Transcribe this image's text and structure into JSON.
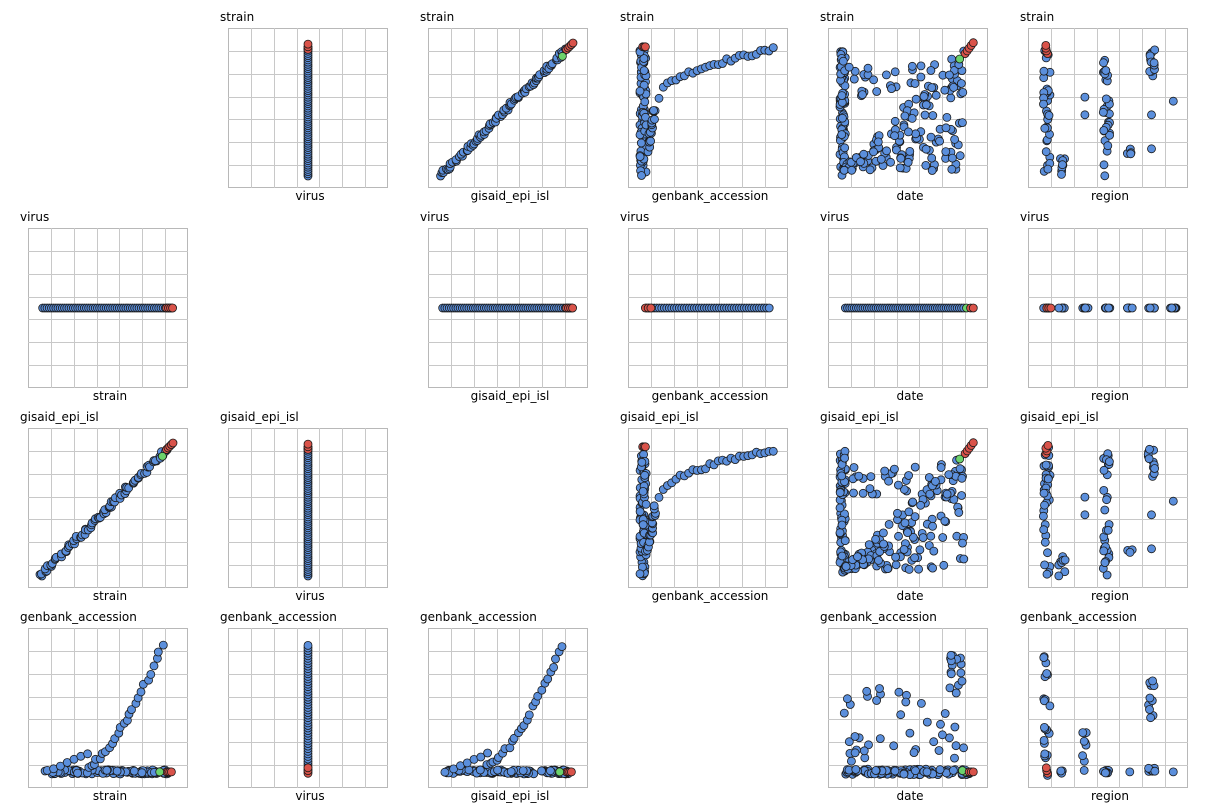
{
  "chart_data": {
    "type": "scatter",
    "title": "",
    "variables": [
      "strain",
      "virus",
      "gisaid_epi_isl",
      "genbank_accession",
      "date",
      "region"
    ],
    "row_variables": [
      "strain",
      "virus",
      "gisaid_epi_isl",
      "genbank_accession"
    ],
    "col_variables": [
      "strain",
      "virus",
      "gisaid_epi_isl",
      "genbank_accession",
      "date",
      "region"
    ],
    "colors": {
      "default": "#5b8fdc",
      "highlight": "#d9534a",
      "other": "#6cd36c"
    },
    "grid_divisions": 7,
    "legend": "none",
    "subplots": [
      {
        "row": "strain",
        "col": "virus",
        "ylabel": "strain",
        "xlabel": "virus",
        "pattern": "vline",
        "points": []
      },
      {
        "row": "strain",
        "col": "gisaid_epi_isl",
        "ylabel": "strain",
        "xlabel": "gisaid_epi_isl",
        "pattern": "diagonal",
        "points": []
      },
      {
        "row": "strain",
        "col": "genbank_accession",
        "ylabel": "strain",
        "xlabel": "genbank_accession",
        "pattern": "accession_curve",
        "points": []
      },
      {
        "row": "strain",
        "col": "date",
        "ylabel": "strain",
        "xlabel": "date",
        "pattern": "date_fan",
        "points": []
      },
      {
        "row": "strain",
        "col": "region",
        "ylabel": "strain",
        "xlabel": "region",
        "pattern": "region_clusters",
        "points": []
      },
      {
        "row": "virus",
        "col": "strain",
        "ylabel": "virus",
        "xlabel": "strain",
        "pattern": "hline",
        "points": []
      },
      {
        "row": "virus",
        "col": "gisaid_epi_isl",
        "ylabel": "virus",
        "xlabel": "gisaid_epi_isl",
        "pattern": "hline",
        "points": []
      },
      {
        "row": "virus",
        "col": "genbank_accession",
        "ylabel": "virus",
        "xlabel": "genbank_accession",
        "pattern": "hline_accession",
        "points": []
      },
      {
        "row": "virus",
        "col": "date",
        "ylabel": "virus",
        "xlabel": "date",
        "pattern": "hline_date",
        "points": []
      },
      {
        "row": "virus",
        "col": "region",
        "ylabel": "virus",
        "xlabel": "region",
        "pattern": "hline_region",
        "points": []
      },
      {
        "row": "gisaid_epi_isl",
        "col": "strain",
        "ylabel": "gisaid_epi_isl",
        "xlabel": "strain",
        "pattern": "diagonal",
        "points": []
      },
      {
        "row": "gisaid_epi_isl",
        "col": "virus",
        "ylabel": "gisaid_epi_isl",
        "xlabel": "virus",
        "pattern": "vline",
        "points": []
      },
      {
        "row": "gisaid_epi_isl",
        "col": "genbank_accession",
        "ylabel": "gisaid_epi_isl",
        "xlabel": "genbank_accession",
        "pattern": "accession_curve",
        "points": []
      },
      {
        "row": "gisaid_epi_isl",
        "col": "date",
        "ylabel": "gisaid_epi_isl",
        "xlabel": "date",
        "pattern": "date_fan",
        "points": []
      },
      {
        "row": "gisaid_epi_isl",
        "col": "region",
        "ylabel": "gisaid_epi_isl",
        "xlabel": "region",
        "pattern": "region_clusters",
        "points": []
      },
      {
        "row": "genbank_accession",
        "col": "strain",
        "ylabel": "genbank_accession",
        "xlabel": "strain",
        "pattern": "accession_rise",
        "points": []
      },
      {
        "row": "genbank_accession",
        "col": "virus",
        "ylabel": "genbank_accession",
        "xlabel": "virus",
        "pattern": "vline_accession",
        "points": []
      },
      {
        "row": "genbank_accession",
        "col": "gisaid_epi_isl",
        "ylabel": "genbank_accession",
        "xlabel": "gisaid_epi_isl",
        "pattern": "accession_rise",
        "points": []
      },
      {
        "row": "genbank_accession",
        "col": "date",
        "ylabel": "genbank_accession",
        "xlabel": "date",
        "pattern": "accession_date",
        "points": []
      },
      {
        "row": "genbank_accession",
        "col": "region",
        "ylabel": "genbank_accession",
        "xlabel": "region",
        "pattern": "accession_region",
        "points": []
      }
    ]
  }
}
